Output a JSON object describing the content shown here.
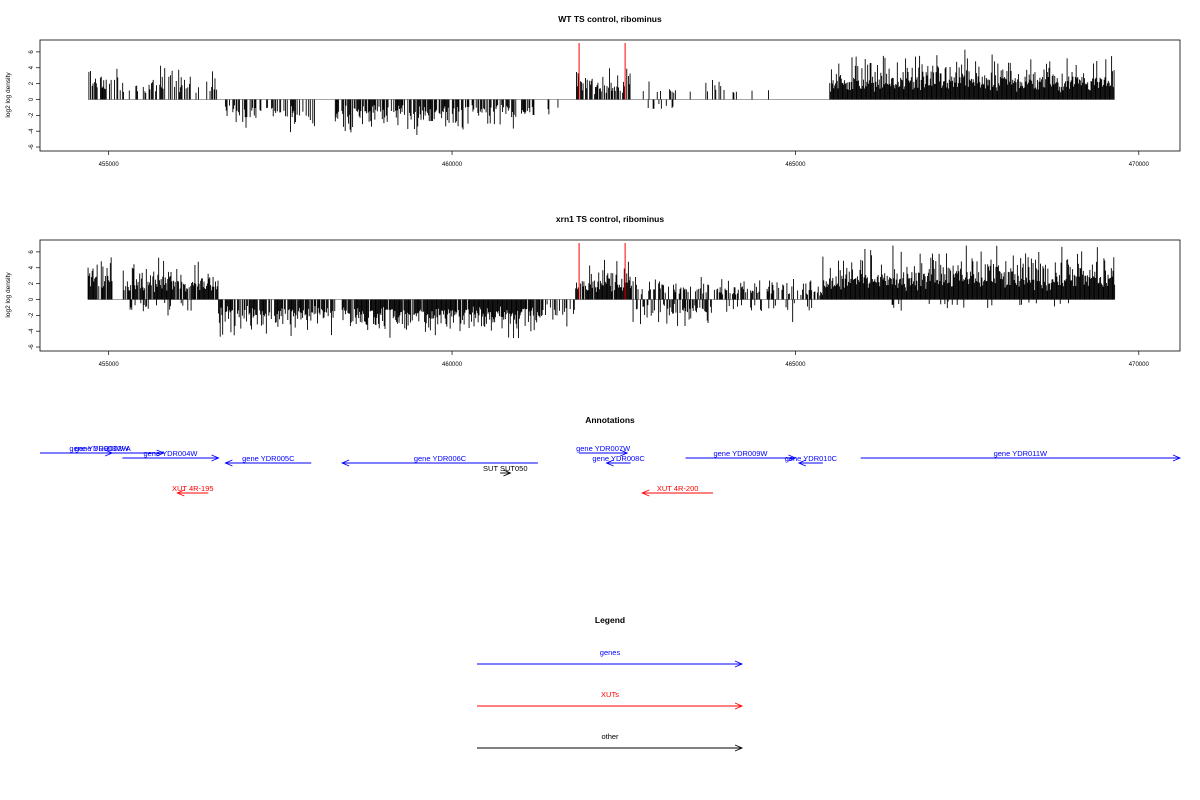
{
  "chart_data": [
    {
      "type": "bar",
      "title": "WT TS control, ribominus",
      "ylabel": "log2 log density",
      "xlabel": "",
      "xlim": [
        454000,
        470600
      ],
      "ylim": [
        -6.5,
        7.5
      ],
      "xticks": [
        "455000",
        "460000",
        "465000",
        "470000"
      ],
      "yticks": [
        "-6",
        "-4",
        "-2",
        "0",
        "2",
        "4",
        "6"
      ],
      "data_range": [
        454700,
        469650
      ],
      "highlight_lines": [
        461850,
        462520
      ],
      "highlight_color": "#ff0000",
      "bar_color": "#000000",
      "grid": false,
      "density_profile": [
        {
          "from": 454700,
          "to": 456600,
          "sign": 1,
          "amp": 2.6,
          "density": 0.45
        },
        {
          "from": 456700,
          "to": 458000,
          "sign": -1,
          "amp": 2.4,
          "density": 0.45
        },
        {
          "from": 458300,
          "to": 461200,
          "sign": -1,
          "amp": 2.6,
          "density": 0.7
        },
        {
          "from": 461350,
          "to": 461650,
          "sign": -1,
          "amp": 1.6,
          "density": 0.3
        },
        {
          "from": 461800,
          "to": 462600,
          "sign": 1,
          "amp": 2.6,
          "density": 0.75
        },
        {
          "from": 462700,
          "to": 464700,
          "sign": 1,
          "amp": 1.8,
          "density": 0.12
        },
        {
          "from": 462700,
          "to": 463400,
          "sign": -1,
          "amp": 1.5,
          "density": 0.15
        },
        {
          "from": 465500,
          "to": 469650,
          "sign": 1,
          "amp": 3.5,
          "density": 1.0
        }
      ]
    },
    {
      "type": "bar",
      "title": "xrn1 TS control, ribominus",
      "ylabel": "log2 log density",
      "xlabel": "",
      "xlim": [
        454000,
        470600
      ],
      "ylim": [
        -6.5,
        7.5
      ],
      "xticks": [
        "455000",
        "460000",
        "465000",
        "470000"
      ],
      "yticks": [
        "-6",
        "-4",
        "-2",
        "0",
        "2",
        "4",
        "6"
      ],
      "data_range": [
        454700,
        469650
      ],
      "highlight_lines": [
        461850,
        462520
      ],
      "highlight_color": "#ff0000",
      "bar_color": "#000000",
      "grid": false,
      "density_profile": [
        {
          "from": 454700,
          "to": 455050,
          "sign": 1,
          "amp": 4.0,
          "density": 0.9
        },
        {
          "from": 455200,
          "to": 456600,
          "sign": 1,
          "amp": 3.0,
          "density": 0.9
        },
        {
          "from": 455300,
          "to": 456300,
          "sign": -1,
          "amp": 1.5,
          "density": 0.2
        },
        {
          "from": 456600,
          "to": 458300,
          "sign": -1,
          "amp": 3.0,
          "density": 0.8
        },
        {
          "from": 458400,
          "to": 461300,
          "sign": -1,
          "amp": 3.0,
          "density": 0.95
        },
        {
          "from": 461300,
          "to": 461800,
          "sign": -1,
          "amp": 2.2,
          "density": 0.4
        },
        {
          "from": 461800,
          "to": 462600,
          "sign": 1,
          "amp": 3.2,
          "density": 0.95
        },
        {
          "from": 462600,
          "to": 463400,
          "sign": 1,
          "amp": 2.0,
          "density": 0.5
        },
        {
          "from": 462600,
          "to": 463800,
          "sign": -1,
          "amp": 2.2,
          "density": 0.45
        },
        {
          "from": 463400,
          "to": 465400,
          "sign": 1,
          "amp": 1.8,
          "density": 0.45
        },
        {
          "from": 464000,
          "to": 465300,
          "sign": -1,
          "amp": 1.6,
          "density": 0.15
        },
        {
          "from": 465400,
          "to": 469650,
          "sign": 1,
          "amp": 4.0,
          "density": 1.0
        },
        {
          "from": 466000,
          "to": 469000,
          "sign": -1,
          "amp": 1.0,
          "density": 0.05
        }
      ]
    }
  ],
  "annotations": {
    "title": "Annotations",
    "xlim": [
      454000,
      470600
    ],
    "features": [
      {
        "label": "gene YDR002W",
        "start": 454000,
        "end": 455800,
        "y_row": 0,
        "dir": "fwd",
        "color": "#0000ff"
      },
      {
        "label": "gene YDR003W-A",
        "start": 454700,
        "end": 455050,
        "y_row": 0,
        "dir": "fwd",
        "color": "#0000ff"
      },
      {
        "label": "gene YDR004W",
        "start": 455200,
        "end": 456600,
        "y_row": 1,
        "dir": "fwd",
        "color": "#0000ff"
      },
      {
        "label": "gene YDR005C",
        "start": 456700,
        "end": 457950,
        "y_row": 2,
        "dir": "rev",
        "color": "#0000ff"
      },
      {
        "label": "gene YDR006C",
        "start": 458400,
        "end": 461250,
        "y_row": 2,
        "dir": "rev",
        "color": "#0000ff"
      },
      {
        "label": "gene YDR007W",
        "start": 461850,
        "end": 462550,
        "y_row": 0,
        "dir": "fwd",
        "color": "#0000ff"
      },
      {
        "label": "gene YDR008C",
        "start": 462250,
        "end": 462600,
        "y_row": 2,
        "dir": "rev",
        "color": "#0000ff"
      },
      {
        "label": "gene YDR009W",
        "start": 463400,
        "end": 465000,
        "y_row": 1,
        "dir": "fwd",
        "color": "#0000ff"
      },
      {
        "label": "gene YDR010C",
        "start": 465050,
        "end": 465400,
        "y_row": 2,
        "dir": "rev",
        "color": "#0000ff"
      },
      {
        "label": "gene YDR011W",
        "start": 465950,
        "end": 470600,
        "y_row": 1,
        "dir": "fwd",
        "color": "#0000ff"
      },
      {
        "label": "SUT SUT050",
        "start": 460700,
        "end": 460850,
        "y_row": 4,
        "dir": "fwd",
        "color": "#000000"
      },
      {
        "label": "XUT 4R-195",
        "start": 456000,
        "end": 456450,
        "y_row": 8,
        "dir": "rev",
        "color": "#ff0000"
      },
      {
        "label": "XUT 4R-200",
        "start": 462770,
        "end": 463800,
        "y_row": 8,
        "dir": "rev",
        "color": "#ff0000"
      }
    ]
  },
  "legend": {
    "title": "Legend",
    "items": [
      {
        "label": "genes",
        "color": "#0000ff"
      },
      {
        "label": "XUTs",
        "color": "#ff0000"
      },
      {
        "label": "other",
        "color": "#000000"
      }
    ]
  }
}
